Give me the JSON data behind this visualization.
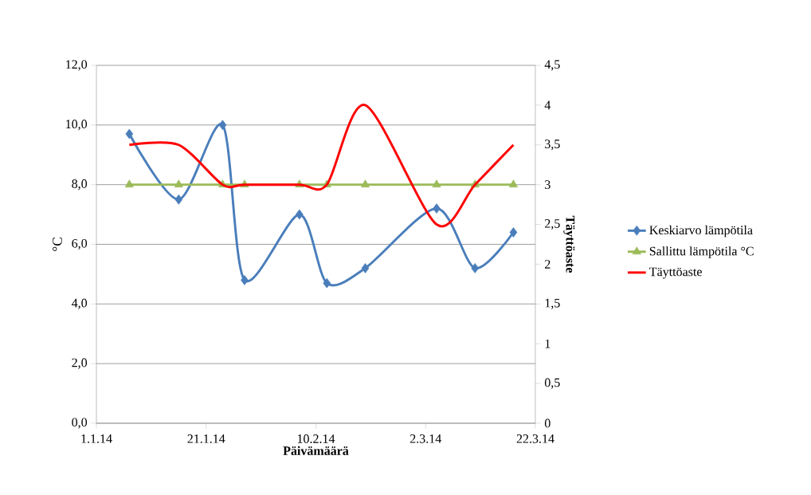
{
  "chart_data": {
    "type": "line",
    "xlabel": "Päivämäärä",
    "ylabel": "°C",
    "y2label": "Täyttöaste",
    "x": [
      "2014-01-07",
      "2014-01-16",
      "2014-01-24",
      "2014-01-28",
      "2014-02-07",
      "2014-02-12",
      "2014-02-19",
      "2014-03-04",
      "2014-03-11",
      "2014-03-18"
    ],
    "series": [
      {
        "name": "Keskiarvo lämpötila",
        "color": "#4a7ebb",
        "marker": "diamond",
        "values": [
          9.7,
          7.5,
          10.0,
          4.8,
          7.0,
          4.7,
          5.2,
          7.2,
          5.2,
          6.4
        ]
      },
      {
        "name": "Sallittu lämpötila °C",
        "color": "#9bbb59",
        "marker": "triangle",
        "values": [
          8,
          8,
          8,
          8,
          8,
          8,
          8,
          8,
          8,
          8
        ]
      },
      {
        "name": "Täyttöaste",
        "color": "#ff0000",
        "marker": "none",
        "axis": "y2",
        "values": [
          3.5,
          3.5,
          3,
          3,
          3,
          3,
          4,
          2.5,
          3,
          3.5
        ]
      }
    ],
    "xlim": [
      "2014-01-01",
      "2014-03-22"
    ],
    "xticks": [
      {
        "value": "2014-01-01",
        "label": "1.1.14"
      },
      {
        "value": "2014-01-21",
        "label": "21.1.14"
      },
      {
        "value": "2014-02-10",
        "label": "10.2.14"
      },
      {
        "value": "2014-03-02",
        "label": "2.3.14"
      },
      {
        "value": "2014-03-22",
        "label": "22.3.14"
      }
    ],
    "ylim": [
      0,
      12
    ],
    "yticks": [
      {
        "value": 0,
        "label": "0,0"
      },
      {
        "value": 2,
        "label": "2,0"
      },
      {
        "value": 4,
        "label": "4,0"
      },
      {
        "value": 6,
        "label": "6,0"
      },
      {
        "value": 8,
        "label": "8,0"
      },
      {
        "value": 10,
        "label": "10,0"
      },
      {
        "value": 12,
        "label": "12,0"
      }
    ],
    "y2lim": [
      0,
      4.5
    ],
    "y2ticks": [
      0,
      {
        "value": 0.5,
        "label": "0,5"
      },
      1,
      {
        "value": 1.5,
        "label": "1,5"
      },
      2,
      {
        "value": 2.5,
        "label": "2,5"
      },
      3,
      {
        "value": 3.5,
        "label": "3,5"
      },
      4,
      {
        "value": 4.5,
        "label": "4,5"
      }
    ],
    "grid": "y",
    "legend": "right"
  }
}
